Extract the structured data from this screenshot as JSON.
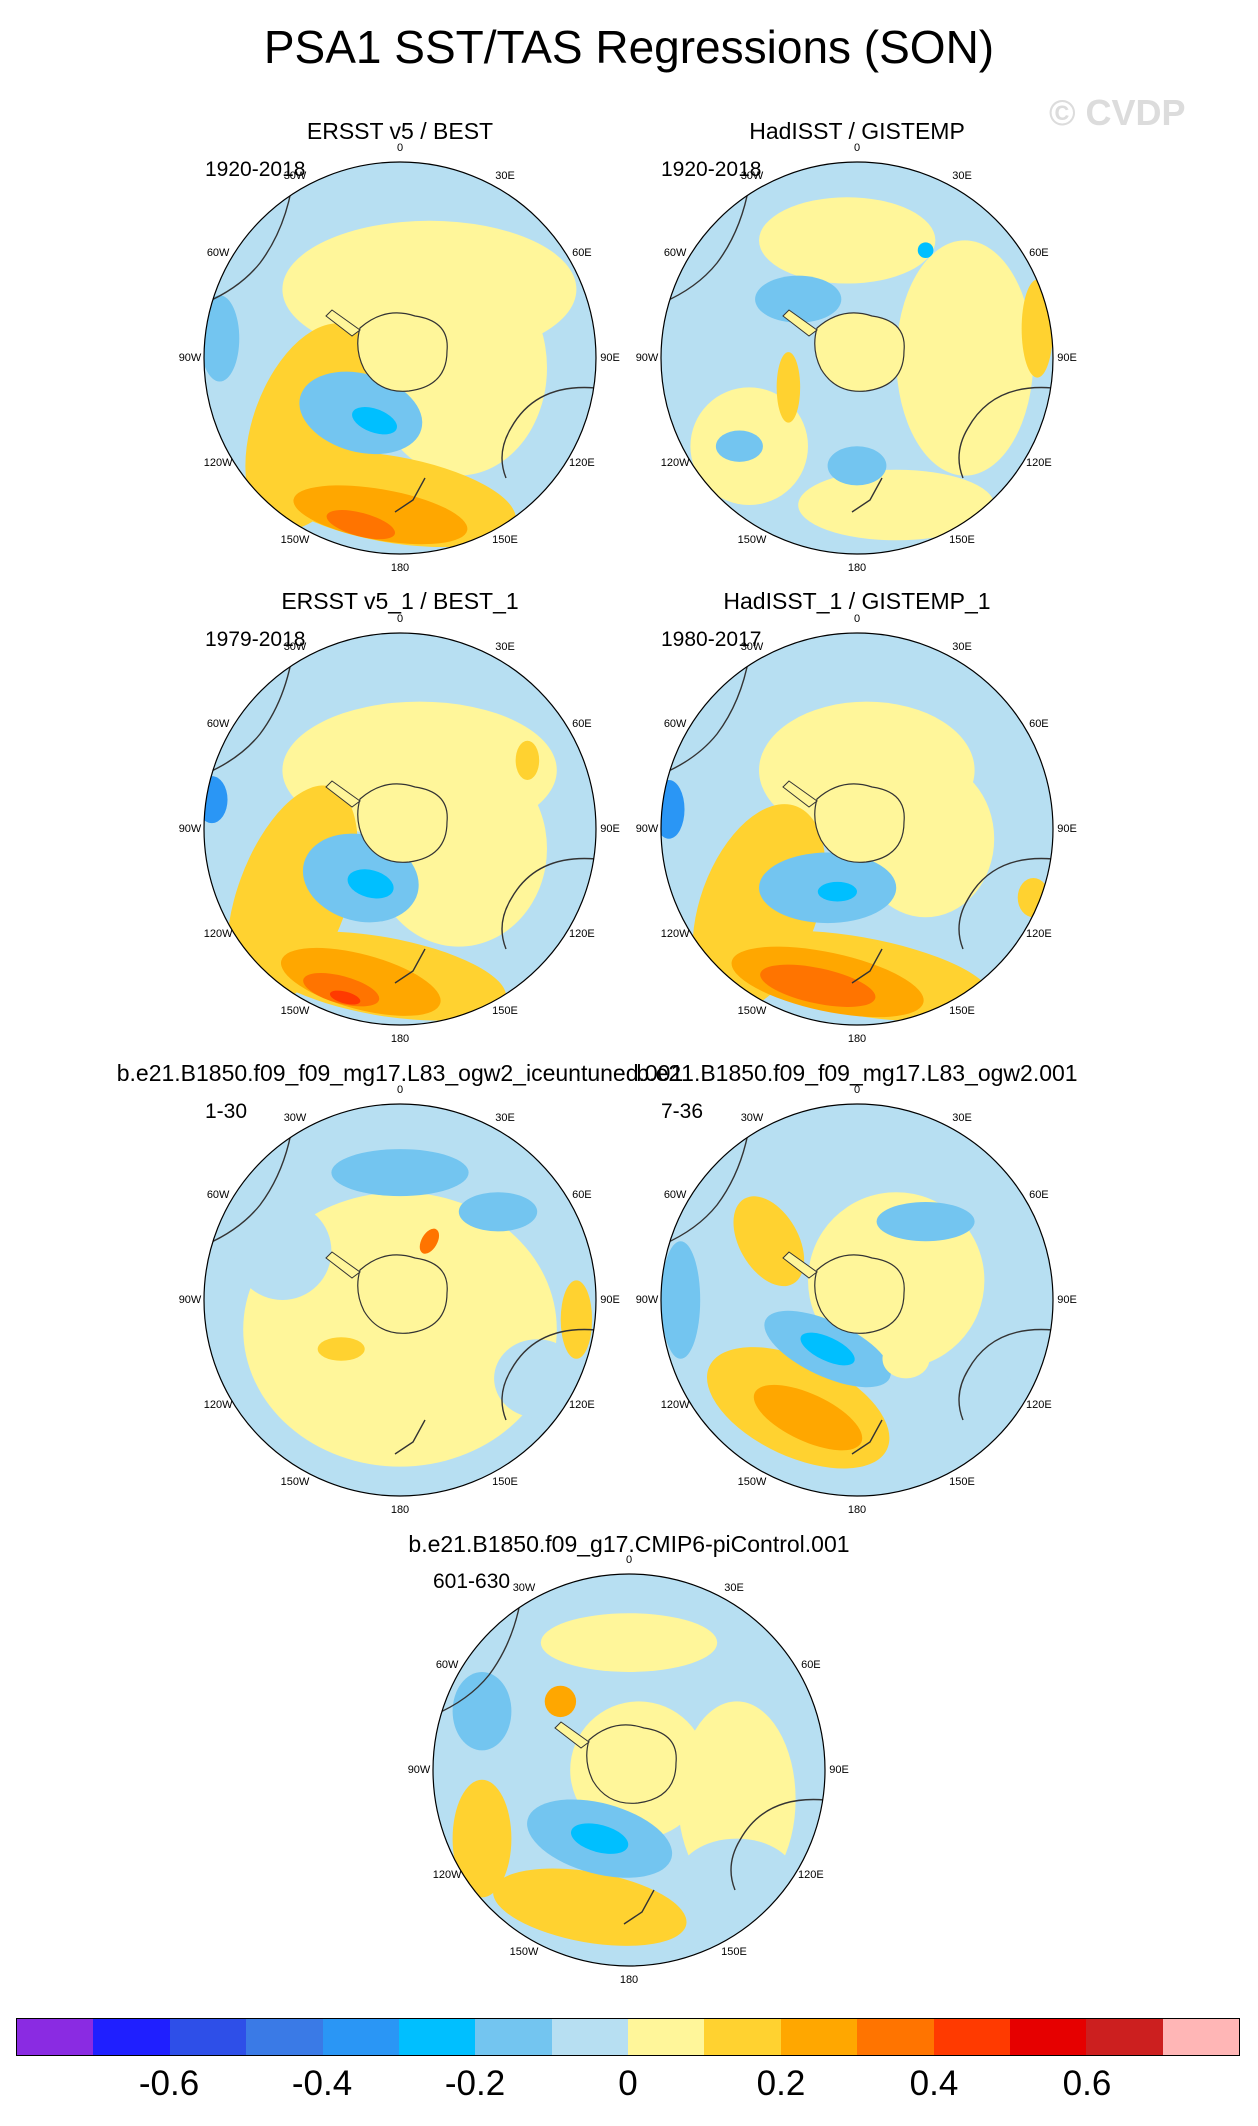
{
  "title": "PSA1 SST/TAS Regressions (SON)",
  "watermark": "© CVDP",
  "lon_labels": [
    "0",
    "30E",
    "60E",
    "90E",
    "120E",
    "150E",
    "180",
    "150W",
    "120W",
    "90W",
    "60W",
    "30W"
  ],
  "panels": [
    {
      "title": "ERSST v5 / BEST",
      "period": "1920-2018"
    },
    {
      "title": "HadISST / GISTEMP",
      "period": "1920-2018"
    },
    {
      "title": "ERSST v5_1 / BEST_1",
      "period": "1979-2018"
    },
    {
      "title": "HadISST_1 / GISTEMP_1",
      "period": "1980-2017"
    },
    {
      "title": "b.e21.B1850.f09_f09_mg17.L83_ogw2_iceuntuned.001",
      "period": "1-30"
    },
    {
      "title": "b.e21.B1850.f09_f09_mg17.L83_ogw2.001",
      "period": "7-36"
    },
    {
      "title": "b.e21.B1850.f09_g17.CMIP6-piControl.001",
      "period": "601-630"
    }
  ],
  "colorbar": {
    "colors": [
      "#8a2be2",
      "#1f1fff",
      "#2e4fe8",
      "#3a7ae6",
      "#2a96f5",
      "#00bfff",
      "#73c5f0",
      "#b7dff2",
      "#fff69a",
      "#ffd230",
      "#ffa700",
      "#ff7400",
      "#ff3a00",
      "#e60000",
      "#cc1f1f",
      "#ffb6b6"
    ],
    "labels": [
      "-0.6",
      "-0.4",
      "-0.2",
      "0",
      "0.2",
      "0.4",
      "0.6"
    ]
  }
}
